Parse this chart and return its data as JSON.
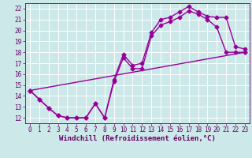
{
  "xlabel": "Windchill (Refroidissement éolien,°C)",
  "xlim": [
    -0.5,
    23.5
  ],
  "ylim": [
    11.5,
    22.5
  ],
  "xticks": [
    0,
    1,
    2,
    3,
    4,
    5,
    6,
    7,
    8,
    9,
    10,
    11,
    12,
    13,
    14,
    15,
    16,
    17,
    18,
    19,
    20,
    21,
    22,
    23
  ],
  "yticks": [
    12,
    13,
    14,
    15,
    16,
    17,
    18,
    19,
    20,
    21,
    22
  ],
  "bg_color": "#cce8e8",
  "grid_color": "#ffffff",
  "line_color": "#990099",
  "line1_x": [
    0,
    1,
    2,
    3,
    4,
    5,
    6,
    7,
    8,
    9,
    10,
    11,
    12,
    13,
    14,
    15,
    16,
    17,
    18,
    19,
    20,
    21,
    22,
    23
  ],
  "line1_y": [
    14.5,
    13.7,
    12.9,
    12.2,
    12.0,
    12.0,
    12.0,
    13.3,
    12.0,
    15.3,
    17.5,
    16.5,
    16.5,
    19.5,
    20.5,
    20.8,
    21.2,
    21.8,
    21.5,
    21.0,
    20.3,
    18.0,
    18.0,
    18.0
  ],
  "line2_x": [
    0,
    1,
    2,
    3,
    4,
    5,
    6,
    7,
    8,
    9,
    10,
    11,
    12,
    13,
    14,
    15,
    16,
    17,
    18,
    19,
    20,
    21,
    22,
    23
  ],
  "line2_y": [
    14.5,
    13.7,
    12.9,
    12.2,
    12.0,
    12.0,
    12.0,
    13.3,
    12.0,
    15.5,
    17.8,
    16.8,
    17.0,
    19.8,
    21.0,
    21.2,
    21.7,
    22.2,
    21.7,
    21.3,
    21.2,
    21.2,
    18.5,
    18.3
  ],
  "line3_x": [
    0,
    23
  ],
  "line3_y": [
    14.5,
    18.0
  ],
  "marker": "D",
  "markersize": 2.5,
  "linewidth": 1.0,
  "tick_fontsize": 5.5,
  "xlabel_fontsize": 6.5
}
